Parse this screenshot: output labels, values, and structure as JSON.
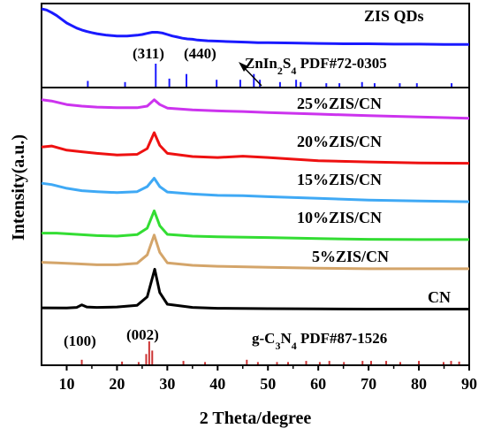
{
  "chart_data": {
    "type": "line",
    "xlabel": "2 Theta/degree",
    "ylabel": "Intensity(a.u.)",
    "xlim": [
      5,
      90
    ],
    "x_ticks": [
      10,
      20,
      30,
      40,
      50,
      60,
      70,
      80,
      90
    ],
    "panels": [
      {
        "id": "top",
        "series": [
          {
            "name": "ZIS QDs",
            "color": "#1a1aff",
            "points": [
              [
                5,
                1.0
              ],
              [
                6,
                0.97
              ],
              [
                7,
                0.9
              ],
              [
                8,
                0.82
              ],
              [
                9,
                0.72
              ],
              [
                10,
                0.62
              ],
              [
                11,
                0.55
              ],
              [
                12,
                0.48
              ],
              [
                13,
                0.43
              ],
              [
                14,
                0.39
              ],
              [
                15,
                0.36
              ],
              [
                16,
                0.33
              ],
              [
                17,
                0.31
              ],
              [
                18,
                0.29
              ],
              [
                19,
                0.28
              ],
              [
                20,
                0.27
              ],
              [
                21,
                0.27
              ],
              [
                22,
                0.27
              ],
              [
                23,
                0.28
              ],
              [
                24,
                0.29
              ],
              [
                25,
                0.31
              ],
              [
                26,
                0.34
              ],
              [
                27,
                0.37
              ],
              [
                28,
                0.37
              ],
              [
                29,
                0.35
              ],
              [
                30,
                0.31
              ],
              [
                31,
                0.27
              ],
              [
                32,
                0.24
              ],
              [
                33,
                0.21
              ],
              [
                34,
                0.19
              ],
              [
                35,
                0.18
              ],
              [
                36,
                0.16
              ],
              [
                38,
                0.14
              ],
              [
                40,
                0.13
              ],
              [
                42,
                0.12
              ],
              [
                44,
                0.11
              ],
              [
                46,
                0.1
              ],
              [
                48,
                0.09
              ],
              [
                50,
                0.09
              ],
              [
                55,
                0.08
              ],
              [
                60,
                0.07
              ],
              [
                65,
                0.06
              ],
              [
                70,
                0.06
              ],
              [
                75,
                0.05
              ],
              [
                80,
                0.05
              ],
              [
                85,
                0.04
              ],
              [
                90,
                0.04
              ]
            ]
          }
        ],
        "reference": {
          "label": "ZnIn₂S₄ PDF#72-0305",
          "color": "#1a1aff",
          "lines": [
            [
              14.2,
              0.25
            ],
            [
              21.6,
              0.2
            ],
            [
              27.7,
              1.0
            ],
            [
              30.4,
              0.35
            ],
            [
              33.8,
              0.55
            ],
            [
              39.8,
              0.3
            ],
            [
              44.5,
              0.3
            ],
            [
              47.2,
              0.55
            ],
            [
              48.4,
              0.3
            ],
            [
              52.4,
              0.2
            ],
            [
              55.6,
              0.3
            ],
            [
              56.5,
              0.2
            ],
            [
              61.6,
              0.15
            ],
            [
              64.2,
              0.15
            ],
            [
              68.7,
              0.2
            ],
            [
              71.2,
              0.15
            ],
            [
              76.2,
              0.15
            ],
            [
              79.6,
              0.15
            ],
            [
              86.5,
              0.15
            ]
          ],
          "peak_labels": [
            "(311)",
            "(440)"
          ]
        }
      },
      {
        "id": "bottom",
        "series": [
          {
            "name": "25%ZIS/CN",
            "color": "#cc33ee",
            "points": [
              [
                5,
                0.7
              ],
              [
                7,
                0.66
              ],
              [
                10,
                0.55
              ],
              [
                13,
                0.5
              ],
              [
                16,
                0.47
              ],
              [
                20,
                0.45
              ],
              [
                24,
                0.45
              ],
              [
                26,
                0.5
              ],
              [
                27.4,
                0.7
              ],
              [
                28.5,
                0.55
              ],
              [
                30,
                0.44
              ],
              [
                35,
                0.38
              ],
              [
                40,
                0.35
              ],
              [
                45,
                0.33
              ],
              [
                50,
                0.3
              ],
              [
                60,
                0.25
              ],
              [
                70,
                0.2
              ],
              [
                80,
                0.16
              ],
              [
                90,
                0.12
              ]
            ]
          },
          {
            "name": "20%ZIS/CN",
            "color": "#ee1111",
            "points": [
              [
                5,
                0.55
              ],
              [
                7,
                0.58
              ],
              [
                10,
                0.45
              ],
              [
                13,
                0.4
              ],
              [
                16,
                0.35
              ],
              [
                20,
                0.3
              ],
              [
                24,
                0.32
              ],
              [
                26,
                0.5
              ],
              [
                27.4,
                1.0
              ],
              [
                28.5,
                0.6
              ],
              [
                30,
                0.35
              ],
              [
                35,
                0.25
              ],
              [
                40,
                0.22
              ],
              [
                45,
                0.26
              ],
              [
                50,
                0.22
              ],
              [
                60,
                0.12
              ],
              [
                70,
                0.08
              ],
              [
                80,
                0.05
              ],
              [
                90,
                0.04
              ]
            ]
          },
          {
            "name": "15%ZIS/CN",
            "color": "#3fa9f5",
            "points": [
              [
                5,
                0.6
              ],
              [
                7,
                0.56
              ],
              [
                10,
                0.45
              ],
              [
                13,
                0.38
              ],
              [
                16,
                0.35
              ],
              [
                20,
                0.32
              ],
              [
                24,
                0.35
              ],
              [
                26,
                0.5
              ],
              [
                27.4,
                0.75
              ],
              [
                28.5,
                0.5
              ],
              [
                30,
                0.34
              ],
              [
                35,
                0.28
              ],
              [
                40,
                0.24
              ],
              [
                45,
                0.23
              ],
              [
                50,
                0.2
              ],
              [
                60,
                0.15
              ],
              [
                70,
                0.1
              ],
              [
                80,
                0.07
              ],
              [
                90,
                0.05
              ]
            ]
          },
          {
            "name": "10%ZIS/CN",
            "color": "#33dd33",
            "points": [
              [
                5,
                0.3
              ],
              [
                8,
                0.3
              ],
              [
                12,
                0.25
              ],
              [
                16,
                0.2
              ],
              [
                20,
                0.18
              ],
              [
                24,
                0.24
              ],
              [
                26,
                0.5
              ],
              [
                27.4,
                1.2
              ],
              [
                28.5,
                0.6
              ],
              [
                30,
                0.25
              ],
              [
                35,
                0.18
              ],
              [
                40,
                0.15
              ],
              [
                50,
                0.12
              ],
              [
                60,
                0.08
              ],
              [
                70,
                0.05
              ],
              [
                80,
                0.04
              ],
              [
                90,
                0.04
              ]
            ]
          },
          {
            "name": "5%ZIS/CN",
            "color": "#d4a56a",
            "points": [
              [
                5,
                0.3
              ],
              [
                8,
                0.28
              ],
              [
                12,
                0.24
              ],
              [
                16,
                0.2
              ],
              [
                20,
                0.2
              ],
              [
                24,
                0.26
              ],
              [
                26,
                0.6
              ],
              [
                27.4,
                1.4
              ],
              [
                28.5,
                0.7
              ],
              [
                30,
                0.28
              ],
              [
                35,
                0.18
              ],
              [
                40,
                0.14
              ],
              [
                50,
                0.1
              ],
              [
                60,
                0.06
              ],
              [
                70,
                0.04
              ],
              [
                80,
                0.04
              ],
              [
                90,
                0.04
              ]
            ]
          },
          {
            "name": "CN",
            "color": "#000000",
            "points": [
              [
                5,
                0.08
              ],
              [
                10,
                0.07
              ],
              [
                12,
                0.1
              ],
              [
                13,
                0.22
              ],
              [
                14,
                0.12
              ],
              [
                16,
                0.1
              ],
              [
                20,
                0.12
              ],
              [
                24,
                0.2
              ],
              [
                26,
                0.6
              ],
              [
                27.5,
                1.9
              ],
              [
                28.5,
                0.8
              ],
              [
                30,
                0.25
              ],
              [
                35,
                0.1
              ],
              [
                40,
                0.06
              ],
              [
                50,
                0.04
              ],
              [
                60,
                0.03
              ],
              [
                70,
                0.02
              ],
              [
                80,
                0.02
              ],
              [
                90,
                0.02
              ]
            ]
          }
        ],
        "reference": {
          "label": "g-C₃N₄ PDF#87-1526",
          "color": "#cc3333",
          "lines": [
            [
              13.0,
              0.2
            ],
            [
              21.0,
              0.12
            ],
            [
              24.3,
              0.1
            ],
            [
              25.8,
              0.45
            ],
            [
              26.4,
              1.0
            ],
            [
              27.0,
              0.6
            ],
            [
              33.2,
              0.15
            ],
            [
              37.5,
              0.1
            ],
            [
              45.8,
              0.2
            ],
            [
              48.0,
              0.1
            ],
            [
              51.8,
              0.1
            ],
            [
              54.0,
              0.1
            ],
            [
              57.6,
              0.15
            ],
            [
              60.3,
              0.1
            ],
            [
              62.2,
              0.15
            ],
            [
              65.1,
              0.1
            ],
            [
              68.8,
              0.15
            ],
            [
              70.5,
              0.15
            ],
            [
              73.5,
              0.15
            ],
            [
              76.3,
              0.1
            ],
            [
              80.0,
              0.15
            ],
            [
              84.9,
              0.1
            ],
            [
              86.4,
              0.15
            ],
            [
              88.0,
              0.12
            ]
          ],
          "peak_labels": [
            "(100)",
            "(002)"
          ]
        }
      }
    ]
  },
  "labels": {
    "ref_top": "ZnIn₂S₄ PDF#72-0305",
    "ref_bottom": "g-C₃N₄ PDF#87-1526",
    "peak_311": "(311)",
    "peak_440": "(440)",
    "peak_100": "(100)",
    "peak_002": "(002)"
  }
}
